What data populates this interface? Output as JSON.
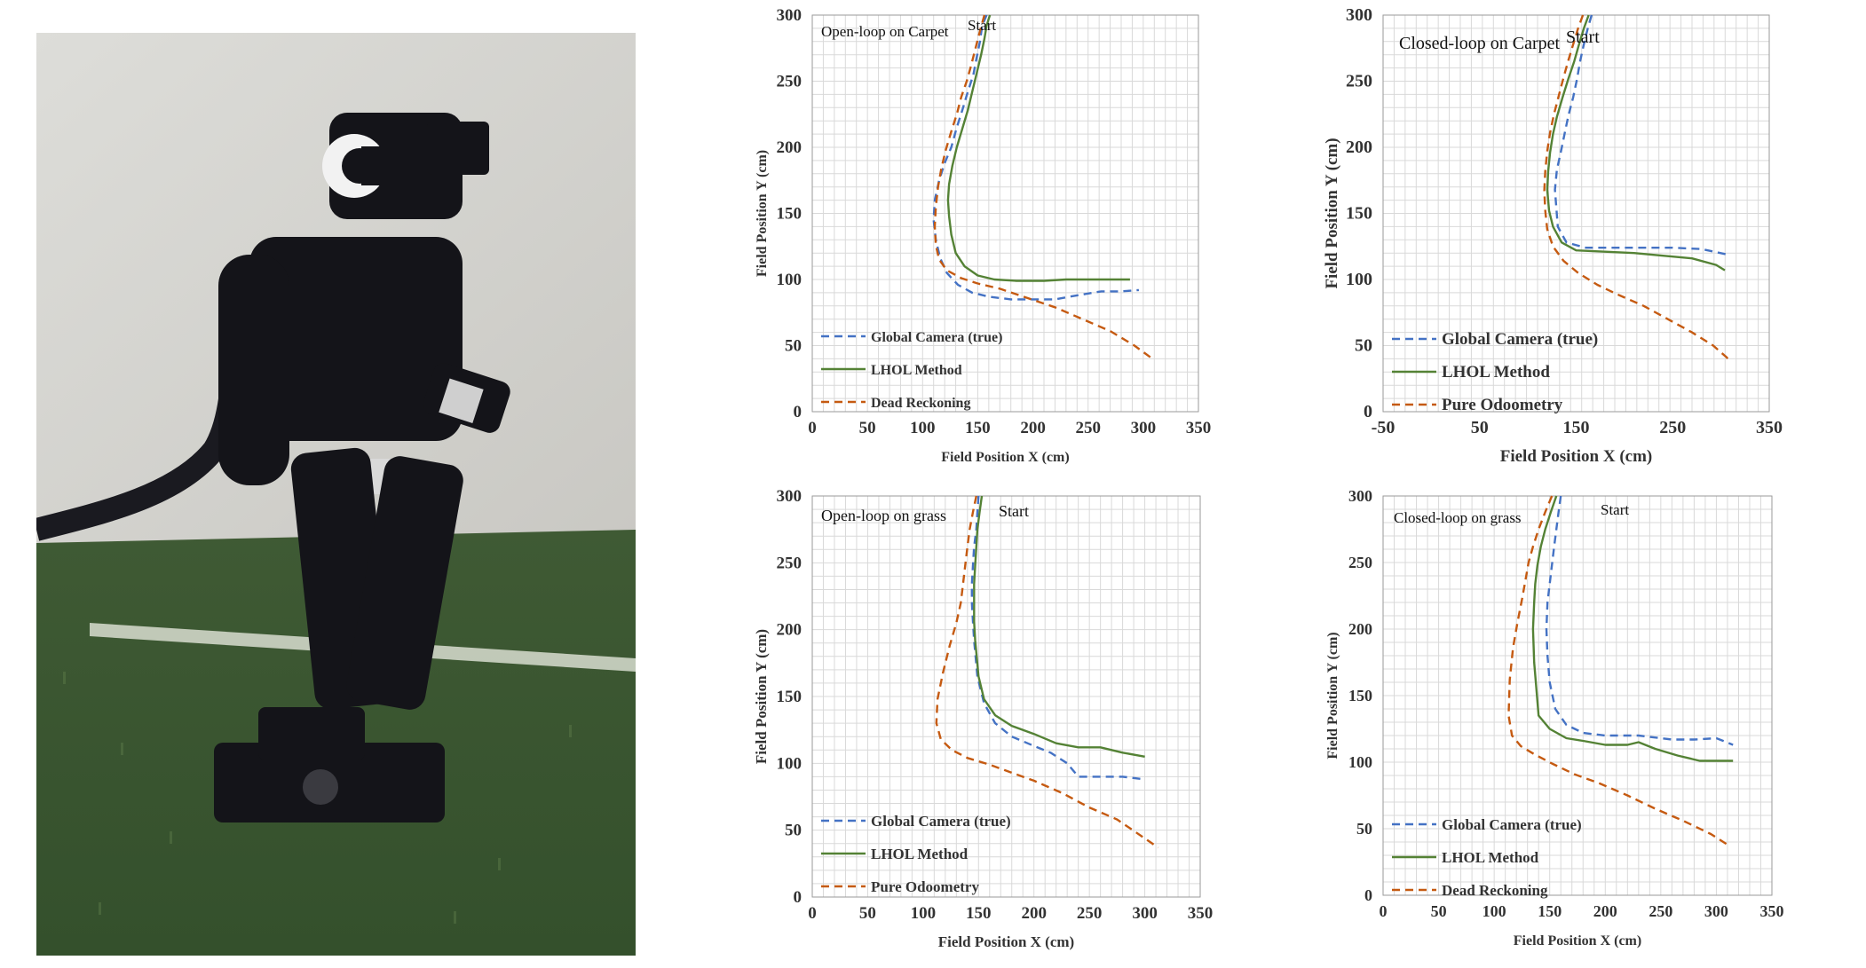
{
  "colors": {
    "camera": "#4472C4",
    "lhol": "#548235",
    "dead": "#C55A11",
    "grid": "#d9d9d9"
  },
  "chart_data": [
    {
      "type": "line",
      "title": "Open-loop on Carpet",
      "annotation": "Start",
      "xlabel": "Field Position X (cm)",
      "ylabel": "Field Position Y (cm)",
      "xlim": [
        0,
        350
      ],
      "ylim": [
        0,
        300
      ],
      "xticks": [
        0,
        50,
        100,
        150,
        200,
        250,
        300,
        350
      ],
      "yticks": [
        0,
        50,
        100,
        150,
        200,
        250,
        300
      ],
      "grid": true,
      "legend_position": "bottom-left",
      "series": [
        {
          "name": "Global Camera (true)",
          "style": "dashed",
          "color_key": "camera",
          "x": [
            158,
            154,
            152,
            149,
            146,
            141,
            136,
            131,
            126,
            120,
            115,
            111,
            110,
            112,
            116,
            122,
            132,
            145,
            160,
            180,
            200,
            220,
            240,
            262,
            280,
            296
          ],
          "y": [
            300,
            292,
            280,
            268,
            255,
            242,
            228,
            215,
            200,
            188,
            175,
            160,
            145,
            130,
            116,
            105,
            96,
            90,
            87,
            85,
            85,
            85,
            88,
            91,
            91,
            92
          ]
        },
        {
          "name": "LHOL Method",
          "style": "solid",
          "color_key": "lhol",
          "x": [
            161,
            158,
            156,
            153,
            149,
            145,
            141,
            136,
            131,
            127,
            124,
            123,
            124,
            126,
            130,
            138,
            150,
            165,
            185,
            210,
            230,
            250,
            270,
            288
          ],
          "y": [
            300,
            292,
            282,
            270,
            256,
            242,
            228,
            214,
            200,
            186,
            172,
            160,
            148,
            134,
            120,
            110,
            103,
            100,
            99,
            99,
            100,
            100,
            100,
            100
          ]
        },
        {
          "name": "Dead Reckoning",
          "style": "dashed",
          "color_key": "dead",
          "x": [
            156,
            152,
            148,
            144,
            140,
            135,
            131,
            126,
            121,
            117,
            114,
            112,
            111,
            112,
            115,
            122,
            135,
            150,
            170,
            195,
            220,
            245,
            270,
            292,
            310
          ],
          "y": [
            300,
            288,
            275,
            262,
            250,
            238,
            225,
            212,
            198,
            184,
            170,
            155,
            140,
            126,
            115,
            107,
            101,
            97,
            93,
            86,
            79,
            70,
            61,
            50,
            39
          ]
        }
      ]
    },
    {
      "type": "line",
      "title": "Closed-loop on Carpet",
      "annotation": "Start",
      "xlabel": "Field Position X (cm)",
      "ylabel": "Field Position Y (cm)",
      "xlim": [
        -50,
        350
      ],
      "ylim": [
        0,
        300
      ],
      "xticks": [
        -50,
        50,
        150,
        250,
        350
      ],
      "yticks": [
        0,
        50,
        100,
        150,
        200,
        250,
        300
      ],
      "grid": true,
      "legend_position": "bottom-left",
      "series": [
        {
          "name": "Global Camera (true)",
          "style": "dashed",
          "color_key": "camera",
          "x": [
            166,
            162,
            158,
            154,
            151,
            147,
            142,
            138,
            134,
            130,
            128,
            131,
            140,
            160,
            190,
            220,
            250,
            280,
            306
          ],
          "y": [
            300,
            290,
            278,
            265,
            252,
            238,
            224,
            210,
            196,
            183,
            168,
            140,
            128,
            124,
            124,
            124,
            124,
            123,
            119
          ]
        },
        {
          "name": "LHOL Method",
          "style": "solid",
          "color_key": "lhol",
          "x": [
            163,
            158,
            153,
            148,
            142,
            136,
            130,
            126,
            123,
            121,
            120,
            122,
            126,
            135,
            150,
            180,
            210,
            240,
            270,
            295,
            304
          ],
          "y": [
            300,
            290,
            278,
            265,
            252,
            238,
            223,
            210,
            196,
            182,
            168,
            152,
            140,
            128,
            122,
            121,
            120,
            118,
            116,
            111,
            107
          ]
        },
        {
          "name": "Pure Odoometry",
          "style": "dashed",
          "color_key": "dead",
          "x": [
            157,
            152,
            147,
            142,
            137,
            132,
            127,
            123,
            120,
            118,
            117,
            118,
            120,
            126,
            137,
            152,
            172,
            195,
            220,
            245,
            270,
            292,
            306,
            310
          ],
          "y": [
            300,
            290,
            278,
            266,
            253,
            239,
            225,
            211,
            197,
            182,
            167,
            152,
            138,
            125,
            114,
            105,
            96,
            88,
            80,
            70,
            60,
            50,
            41,
            37
          ]
        }
      ]
    },
    {
      "type": "line",
      "title": "Open-loop on grass",
      "annotation": "Start",
      "xlabel": "Field Position X (cm)",
      "ylabel": "Field Position Y (cm)",
      "xlim": [
        0,
        350
      ],
      "ylim": [
        0,
        300
      ],
      "xticks": [
        0,
        50,
        100,
        150,
        200,
        250,
        300,
        350
      ],
      "yticks": [
        0,
        50,
        100,
        150,
        200,
        250,
        300
      ],
      "grid": true,
      "legend_position": "bottom-left",
      "series": [
        {
          "name": "Global Camera (true)",
          "style": "dashed",
          "color_key": "camera",
          "x": [
            150,
            149,
            148,
            146,
            145,
            144,
            144,
            145,
            146,
            149,
            155,
            165,
            180,
            200,
            215,
            230,
            240,
            260,
            280,
            300
          ],
          "y": [
            300,
            288,
            275,
            262,
            248,
            234,
            220,
            206,
            192,
            165,
            145,
            130,
            120,
            113,
            108,
            100,
            90,
            90,
            90,
            88
          ]
        },
        {
          "name": "LHOL Method",
          "style": "solid",
          "color_key": "lhol",
          "x": [
            153,
            151,
            149,
            148,
            147,
            146,
            146,
            146,
            147,
            150,
            155,
            165,
            180,
            200,
            220,
            240,
            260,
            280,
            300
          ],
          "y": [
            300,
            288,
            275,
            262,
            248,
            234,
            220,
            206,
            192,
            165,
            148,
            136,
            128,
            122,
            115,
            112,
            112,
            108,
            105
          ]
        },
        {
          "name": "Pure Odoometry",
          "style": "dashed",
          "color_key": "dead",
          "x": [
            148,
            145,
            142,
            140,
            138,
            136,
            134,
            130,
            124,
            118,
            113,
            112,
            116,
            126,
            140,
            160,
            180,
            200,
            225,
            250,
            275,
            298,
            312
          ],
          "y": [
            300,
            288,
            275,
            262,
            248,
            234,
            220,
            205,
            188,
            168,
            148,
            130,
            118,
            110,
            104,
            99,
            93,
            87,
            78,
            67,
            58,
            45,
            37
          ]
        }
      ]
    },
    {
      "type": "line",
      "title": "Closed-loop on grass",
      "annotation": "Start",
      "xlabel": "Field Position X (cm)",
      "ylabel": "Field Position Y (cm)",
      "xlim": [
        0,
        350
      ],
      "ylim": [
        0,
        300
      ],
      "xticks": [
        0,
        50,
        100,
        150,
        200,
        250,
        300,
        350
      ],
      "yticks": [
        0,
        50,
        100,
        150,
        200,
        250,
        300
      ],
      "grid": true,
      "legend_position": "bottom-left",
      "series": [
        {
          "name": "Global Camera (true)",
          "style": "dashed",
          "color_key": "camera",
          "x": [
            160,
            158,
            156,
            154,
            152,
            150,
            148,
            147,
            148,
            150,
            155,
            165,
            180,
            200,
            230,
            260,
            280,
            300,
            315
          ],
          "y": [
            300,
            288,
            275,
            262,
            248,
            234,
            220,
            200,
            180,
            160,
            140,
            128,
            122,
            120,
            120,
            117,
            117,
            118,
            113
          ]
        },
        {
          "name": "LHOL Method",
          "style": "solid",
          "color_key": "lhol",
          "x": [
            156,
            151,
            146,
            142,
            139,
            137,
            136,
            135,
            136,
            140,
            150,
            165,
            180,
            200,
            220,
            230,
            245,
            265,
            285,
            300,
            315
          ],
          "y": [
            300,
            288,
            275,
            262,
            248,
            234,
            220,
            200,
            175,
            135,
            125,
            118,
            116,
            113,
            113,
            115,
            110,
            105,
            101,
            101,
            101
          ]
        },
        {
          "name": "Dead Reckoning",
          "style": "dashed",
          "color_key": "dead",
          "x": [
            152,
            146,
            140,
            135,
            131,
            128,
            125,
            121,
            117,
            114,
            113,
            116,
            124,
            136,
            152,
            172,
            195,
            220,
            245,
            270,
            295,
            312
          ],
          "y": [
            300,
            288,
            275,
            262,
            250,
            236,
            222,
            205,
            186,
            162,
            135,
            120,
            112,
            106,
            99,
            91,
            84,
            75,
            65,
            56,
            46,
            37
          ]
        }
      ]
    }
  ]
}
